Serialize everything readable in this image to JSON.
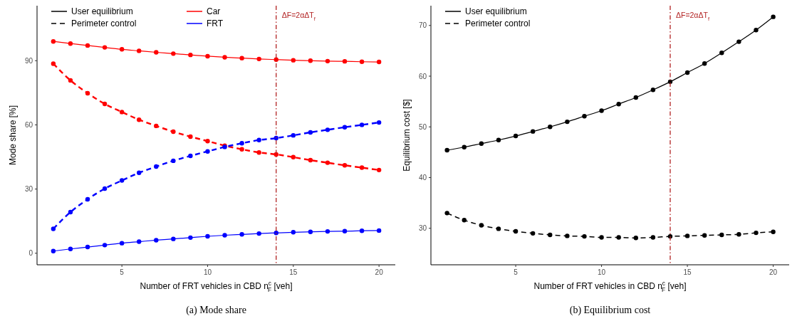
{
  "chart_data": [
    {
      "type": "line",
      "title": "(a) Mode share",
      "xlabel": "Number of FRT vehicles in CBD n$^{c}$$_{F}$ [veh]",
      "ylabel": "Mode share  [%]",
      "xlim": [
        0.05,
        20.95
      ],
      "xticks": [
        5,
        10,
        15,
        20
      ],
      "ylim": [
        -5.4,
        115.7
      ],
      "yticks": [
        0,
        30,
        60,
        90
      ],
      "x": [
        1,
        2,
        3,
        4,
        5,
        6,
        7,
        8,
        9,
        10,
        11,
        12,
        13,
        14,
        15,
        16,
        17,
        18,
        19,
        20
      ],
      "grid": false,
      "legend": "top left",
      "marker": "circle",
      "annotations": [
        "User equilibrium",
        "Perimeter control",
        {
          "text": "ΔF=2αΔT$_{f}$",
          "x": 14,
          "y": 110
        }
      ],
      "ref_lines": [
        {
          "axis": "x",
          "value": 14,
          "color": "#b22222",
          "line_style": "dashdot"
        }
      ],
      "series": [
        {
          "name": "Car",
          "color": "#ff0000",
          "line_style": "solid",
          "values": [
            99.0,
            98.0,
            97.1,
            96.2,
            95.3,
            94.6,
            93.9,
            93.3,
            92.7,
            92.1,
            91.6,
            91.2,
            90.8,
            90.5,
            90.2,
            90.0,
            89.8,
            89.7,
            89.5,
            89.4
          ]
        },
        {
          "name": "FRT",
          "color": "#0000ff",
          "line_style": "solid",
          "values": [
            1.0,
            2.0,
            2.9,
            3.8,
            4.7,
            5.4,
            6.1,
            6.7,
            7.3,
            7.9,
            8.4,
            8.8,
            9.2,
            9.5,
            9.8,
            10.0,
            10.2,
            10.3,
            10.5,
            10.6
          ]
        },
        {
          "color": "#ff0000",
          "line_style": "dashed",
          "values": [
            88.6,
            80.8,
            74.8,
            69.8,
            66.0,
            62.4,
            59.5,
            56.8,
            54.5,
            52.4,
            50.3,
            48.6,
            47.1,
            46.2,
            44.9,
            43.5,
            42.3,
            41.1,
            40.0,
            38.9
          ]
        },
        {
          "color": "#0000ff",
          "line_style": "dashed",
          "values": [
            11.4,
            19.2,
            25.2,
            30.2,
            34.0,
            37.6,
            40.5,
            43.2,
            45.5,
            47.6,
            49.7,
            51.4,
            52.9,
            53.8,
            55.1,
            56.5,
            57.7,
            58.9,
            60.0,
            61.1
          ]
        }
      ]
    },
    {
      "type": "line",
      "title": "(b) Equilibrium cost",
      "xlabel": "Number of FRT vehicles in CBD n$^{c}$$_{F}$ [veh]",
      "ylabel": "Equilibrium cost [$]",
      "xlim": [
        0.06,
        20.93
      ],
      "xticks": [
        5,
        10,
        15,
        20
      ],
      "ylim": [
        22.8,
        73.9
      ],
      "yticks": [
        30,
        40,
        50,
        60,
        70
      ],
      "x": [
        1,
        2,
        3,
        4,
        5,
        6,
        7,
        8,
        9,
        10,
        11,
        12,
        13,
        14,
        15,
        16,
        17,
        18,
        19,
        20
      ],
      "grid": false,
      "legend": "top left",
      "marker": "circle",
      "annotations": [
        {
          "text": "ΔF=2αΔT$_{f}$",
          "x": 14,
          "y": 71.5
        }
      ],
      "ref_lines": [
        {
          "axis": "x",
          "value": 14,
          "color": "#b22222",
          "line_style": "dashdot"
        }
      ],
      "series": [
        {
          "name": "User equilibrium",
          "color": "#000000",
          "line_style": "solid",
          "values": [
            45.4,
            46.0,
            46.7,
            47.4,
            48.2,
            49.1,
            50.0,
            51.0,
            52.1,
            53.2,
            54.5,
            55.8,
            57.3,
            58.9,
            60.7,
            62.5,
            64.6,
            66.8,
            69.1,
            71.7
          ]
        },
        {
          "name": "Perimeter control",
          "color": "#000000",
          "line_style": "dashed",
          "values": [
            33.0,
            31.6,
            30.6,
            29.9,
            29.4,
            29.0,
            28.7,
            28.5,
            28.4,
            28.2,
            28.2,
            28.1,
            28.2,
            28.4,
            28.5,
            28.6,
            28.7,
            28.8,
            29.1,
            29.3
          ]
        }
      ]
    }
  ]
}
